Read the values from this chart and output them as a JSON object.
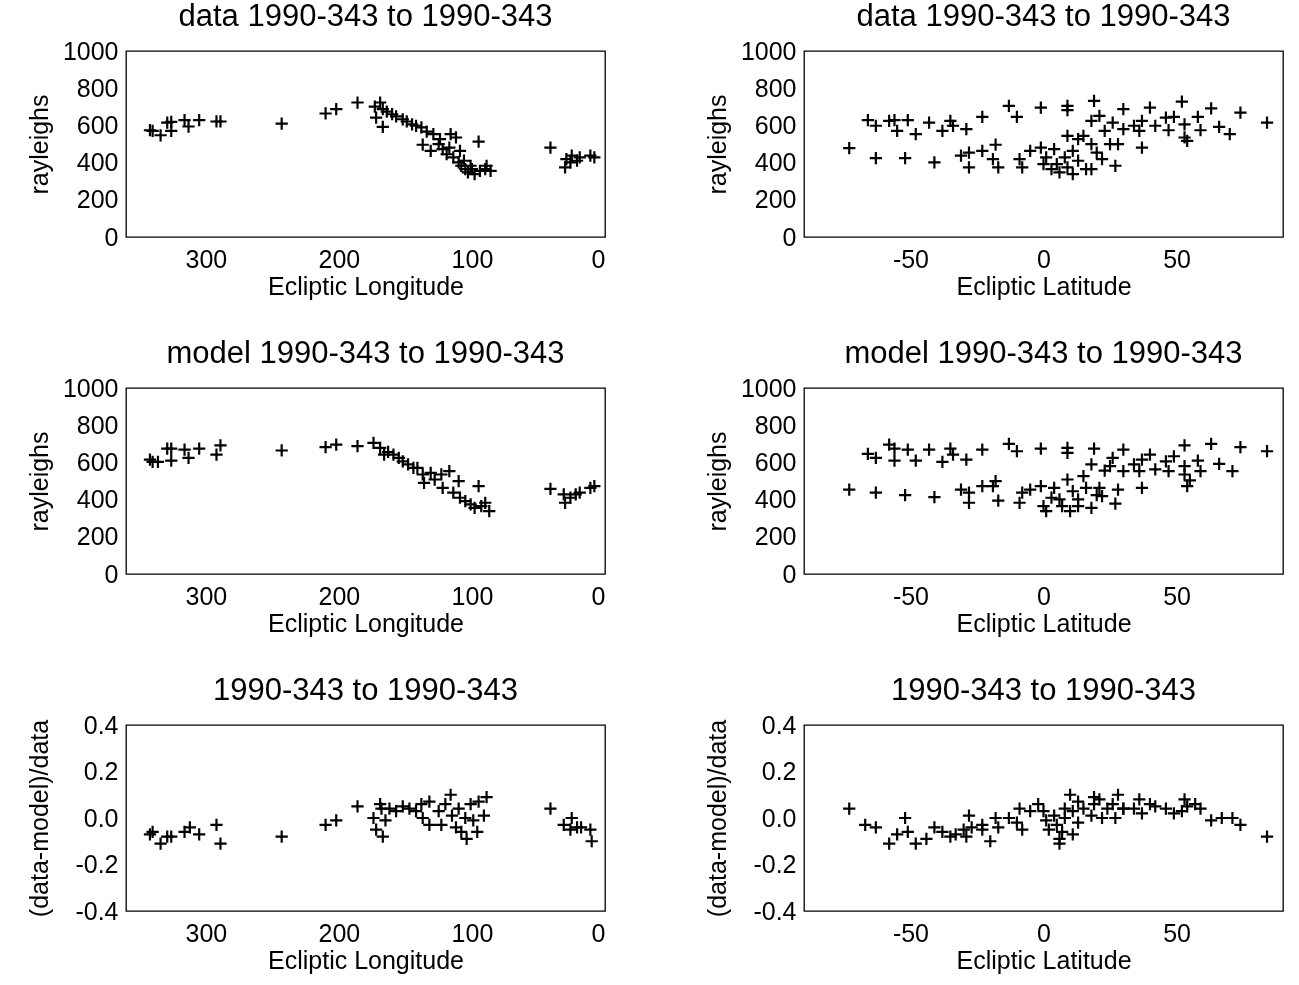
{
  "chart_data": [
    {
      "type": "scatter",
      "title": "data 1990-343 to 1990-343",
      "xlabel": "Ecliptic Longitude",
      "ylabel": "rayleighs",
      "color": "#000000",
      "marker": "cross",
      "xlim": [
        360,
        0
      ],
      "ylim": [
        0,
        1000
      ],
      "xticks": [
        300,
        200,
        100,
        0
      ],
      "yticks": [
        0,
        200,
        400,
        600,
        800,
        1000
      ],
      "x": [
        342,
        340,
        334,
        329,
        326,
        326,
        316,
        313,
        305,
        292,
        289,
        243,
        210,
        202,
        186,
        173,
        169,
        167,
        172,
        167,
        164,
        160,
        157,
        152,
        149,
        145,
        142,
        138,
        137,
        134,
        131,
        129,
        125,
        124,
        122,
        119,
        117,
        116,
        114,
        112,
        110,
        109,
        108,
        106,
        105,
        103,
        101,
        100,
        98,
        95,
        94,
        90,
        89,
        86,
        41,
        30,
        29,
        26,
        25,
        21,
        19,
        11,
        8
      ],
      "values": [
        574,
        571,
        547,
        615,
        571,
        619,
        628,
        594,
        628,
        621,
        621,
        610,
        664,
        687,
        723,
        701,
        723,
        687,
        642,
        592,
        674,
        660,
        648,
        633,
        621,
        606,
        598,
        589,
        496,
        567,
        463,
        553,
        499,
        526,
        472,
        445,
        481,
        553,
        428,
        535,
        401,
        463,
        383,
        410,
        365,
        347,
        383,
        365,
        338,
        513,
        356,
        365,
        383,
        356,
        481,
        374,
        419,
        401,
        437,
        410,
        428,
        437,
        428
      ]
    },
    {
      "type": "scatter",
      "title": "data 1990-343 to 1990-343",
      "xlabel": "Ecliptic Latitude",
      "ylabel": "rayleighs",
      "color": "#000000",
      "marker": "cross",
      "xlim": [
        -90,
        90
      ],
      "ylim": [
        0,
        1000
      ],
      "xticks": [
        -50,
        0,
        50
      ],
      "yticks": [
        0,
        200,
        400,
        600,
        800,
        1000
      ],
      "x": [
        -73,
        -66,
        -63,
        -63,
        -58,
        -56,
        -55,
        -52,
        -51,
        -48,
        -43,
        -41,
        -38,
        -35,
        -34,
        -29,
        -31,
        -28,
        -28,
        -23,
        -23,
        -19,
        -18,
        -17,
        -13,
        -10,
        -9,
        -8,
        -5,
        -1,
        -1,
        0,
        1,
        3,
        4,
        5,
        6,
        8,
        9,
        9,
        9,
        9,
        11,
        11,
        13,
        13,
        15,
        16,
        18,
        18,
        18,
        19,
        20,
        21,
        22,
        23,
        25,
        26,
        27,
        28,
        30,
        30,
        34,
        36,
        37,
        37,
        40,
        42,
        46,
        47,
        49,
        52,
        53,
        53,
        54,
        58,
        59,
        63,
        66,
        70,
        74,
        84
      ],
      "values": [
        478,
        628,
        598,
        424,
        624,
        628,
        571,
        424,
        628,
        553,
        615,
        401,
        571,
        624,
        598,
        580,
        437,
        454,
        374,
        646,
        463,
        419,
        496,
        374,
        705,
        646,
        419,
        374,
        463,
        696,
        481,
        392,
        428,
        365,
        472,
        392,
        347,
        428,
        705,
        544,
        682,
        374,
        338,
        463,
        410,
        526,
        544,
        365,
        499,
        624,
        365,
        732,
        454,
        651,
        419,
        571,
        499,
        615,
        383,
        499,
        687,
        580,
        598,
        571,
        481,
        624,
        696,
        598,
        642,
        574,
        646,
        728,
        535,
        606,
        517,
        646,
        574,
        692,
        592,
        553,
        669,
        615
      ]
    },
    {
      "type": "scatter",
      "title": "model 1990-343 to 1990-343",
      "xlabel": "Ecliptic Longitude",
      "ylabel": "rayleighs",
      "color": "#000000",
      "marker": "cross",
      "xlim": [
        360,
        0
      ],
      "ylim": [
        0,
        1000
      ],
      "xticks": [
        300,
        200,
        100,
        0
      ],
      "yticks": [
        0,
        200,
        400,
        600,
        800,
        1000
      ],
      "x": [
        342,
        340,
        336,
        329,
        326,
        326,
        316,
        313,
        305,
        292,
        289,
        243,
        210,
        202,
        186,
        174,
        169,
        166,
        163,
        159,
        155,
        152,
        148,
        144,
        141,
        137,
        136,
        131,
        128,
        123,
        122,
        117,
        114,
        110,
        109,
        105,
        101,
        98,
        95,
        93,
        90,
        87,
        41,
        31,
        30,
        26,
        22,
        19,
        11,
        8
      ],
      "values": [
        615,
        603,
        603,
        674,
        610,
        674,
        669,
        624,
        674,
        642,
        692,
        664,
        682,
        696,
        687,
        705,
        678,
        642,
        656,
        642,
        624,
        606,
        589,
        571,
        571,
        535,
        490,
        544,
        508,
        535,
        463,
        553,
        437,
        499,
        410,
        392,
        374,
        356,
        472,
        365,
        383,
        338,
        458,
        428,
        383,
        410,
        428,
        437,
        463,
        472
      ]
    },
    {
      "type": "scatter",
      "title": "model 1990-343 to 1990-343",
      "xlabel": "Ecliptic Latitude",
      "ylabel": "rayleighs",
      "color": "#000000",
      "marker": "cross",
      "xlim": [
        -90,
        90
      ],
      "ylim": [
        0,
        1000
      ],
      "xticks": [
        -50,
        0,
        50
      ],
      "yticks": [
        0,
        200,
        400,
        600,
        800,
        1000
      ],
      "x": [
        -73,
        -66,
        -63,
        -63,
        -58,
        -56,
        -56,
        -52,
        -51,
        -48,
        -43,
        -41,
        -38,
        -35,
        -34,
        -29,
        -31,
        -28,
        -28,
        -23,
        -23,
        -19,
        -18,
        -17,
        -13,
        -10,
        -9,
        -8,
        -5,
        -1,
        -1,
        0,
        1,
        3,
        4,
        6,
        7,
        9,
        9,
        9,
        10,
        11,
        13,
        13,
        15,
        16,
        18,
        18,
        19,
        20,
        21,
        22,
        23,
        25,
        26,
        27,
        28,
        30,
        30,
        34,
        36,
        37,
        37,
        40,
        42,
        46,
        47,
        49,
        53,
        53,
        53,
        54,
        55,
        58,
        59,
        63,
        66,
        71,
        74,
        84
      ],
      "values": [
        454,
        646,
        624,
        437,
        696,
        674,
        610,
        424,
        669,
        610,
        669,
        413,
        603,
        674,
        642,
        615,
        454,
        437,
        383,
        669,
        472,
        472,
        499,
        395,
        700,
        660,
        383,
        437,
        454,
        674,
        472,
        365,
        338,
        410,
        463,
        401,
        365,
        678,
        508,
        651,
        338,
        445,
        365,
        401,
        526,
        463,
        356,
        589,
        674,
        424,
        463,
        419,
        556,
        580,
        624,
        378,
        454,
        669,
        553,
        589,
        553,
        463,
        615,
        642,
        562,
        606,
        553,
        633,
        692,
        535,
        580,
        472,
        503,
        610,
        553,
        700,
        592,
        553,
        682,
        660
      ]
    },
    {
      "type": "scatter",
      "title": "1990-343 to 1990-343",
      "xlabel": "Ecliptic Longitude",
      "ylabel": "(data-model)/data",
      "color": "#000000",
      "marker": "cross",
      "xlim": [
        360,
        0
      ],
      "ylim": [
        -0.4,
        0.4
      ],
      "xticks": [
        300,
        200,
        100,
        0
      ],
      "yticks": [
        -0.4,
        -0.2,
        {
          "value": 0,
          "label": "0.0"
        },
        0.2,
        0.4
      ],
      "x": [
        342,
        340,
        334,
        329,
        326,
        316,
        312,
        305,
        292,
        289,
        243,
        210,
        202,
        186,
        174,
        172,
        169,
        167,
        165,
        168,
        162,
        157,
        152,
        147,
        142,
        138,
        137,
        132,
        132,
        125,
        123,
        120,
        116,
        115,
        112,
        110,
        108,
        105,
        104,
        101,
        99,
        96,
        95,
        91,
        89,
        41,
        31,
        25,
        26,
        21,
        18,
        11,
        10
      ],
      "values": [
        -0.07,
        -0.06,
        -0.11,
        -0.08,
        -0.08,
        -0.06,
        -0.04,
        -0.07,
        -0.03,
        -0.11,
        -0.08,
        -0.03,
        -0.01,
        0.05,
        0.0,
        -0.05,
        0.06,
        -0.08,
        -0.01,
        0.04,
        0.04,
        0.03,
        0.05,
        0.04,
        0.03,
        0.06,
        0.0,
        -0.03,
        0.07,
        0.03,
        -0.03,
        0.06,
        0.1,
        0.01,
        -0.04,
        0.04,
        -0.06,
        0.0,
        -0.09,
        0.06,
        -0.01,
        -0.06,
        0.07,
        0.01,
        0.09,
        0.04,
        -0.03,
        0.0,
        -0.05,
        -0.04,
        -0.04,
        -0.05,
        -0.1
      ]
    },
    {
      "type": "scatter",
      "title": "1990-343 to 1990-343",
      "xlabel": "Ecliptic Latitude",
      "ylabel": "(data-model)/data",
      "color": "#000000",
      "marker": "cross",
      "xlim": [
        -90,
        90
      ],
      "ylim": [
        -0.4,
        0.4
      ],
      "xticks": [
        -50,
        0,
        50
      ],
      "yticks": [
        -0.4,
        -0.2,
        {
          "value": 0,
          "label": "0.0"
        },
        0.2,
        0.4
      ],
      "x": [
        -73,
        -67,
        -63,
        -58,
        -55,
        -52,
        -51,
        -48,
        -44,
        -41,
        -38,
        -35,
        -33,
        -30,
        -29,
        -28,
        -27,
        -23,
        -23,
        -20,
        -18,
        -17,
        -13,
        -10,
        -9,
        -8,
        -5,
        -2,
        0,
        1,
        2,
        4,
        5,
        6,
        6,
        7,
        8,
        8,
        10,
        11,
        11,
        13,
        13,
        15,
        18,
        19,
        19,
        21,
        22,
        24,
        26,
        28,
        27,
        30,
        30,
        34,
        36,
        37,
        40,
        42,
        46,
        49,
        52,
        53,
        54,
        57,
        59,
        63,
        67,
        71,
        74,
        84
      ],
      "values": [
        0.04,
        -0.03,
        -0.04,
        -0.11,
        -0.07,
        0.0,
        -0.06,
        -0.11,
        -0.09,
        -0.04,
        -0.06,
        -0.08,
        -0.07,
        -0.05,
        -0.08,
        0.01,
        -0.04,
        -0.03,
        -0.05,
        -0.1,
        0.0,
        -0.04,
        0.0,
        -0.02,
        0.04,
        -0.05,
        0.03,
        0.06,
        0.03,
        -0.01,
        -0.05,
        0.01,
        -0.03,
        -0.09,
        -0.11,
        -0.06,
        0.0,
        0.04,
        0.1,
        -0.07,
        0.03,
        0.07,
        -0.02,
        0.04,
        0.01,
        0.09,
        0.06,
        0.08,
        0.0,
        0.04,
        0.06,
        0.1,
        0.0,
        0.04,
        0.04,
        0.04,
        0.08,
        0.02,
        0.06,
        0.05,
        0.04,
        0.02,
        0.03,
        0.08,
        0.05,
        0.06,
        0.04,
        -0.01,
        0.0,
        0.0,
        -0.03,
        -0.08
      ]
    }
  ]
}
